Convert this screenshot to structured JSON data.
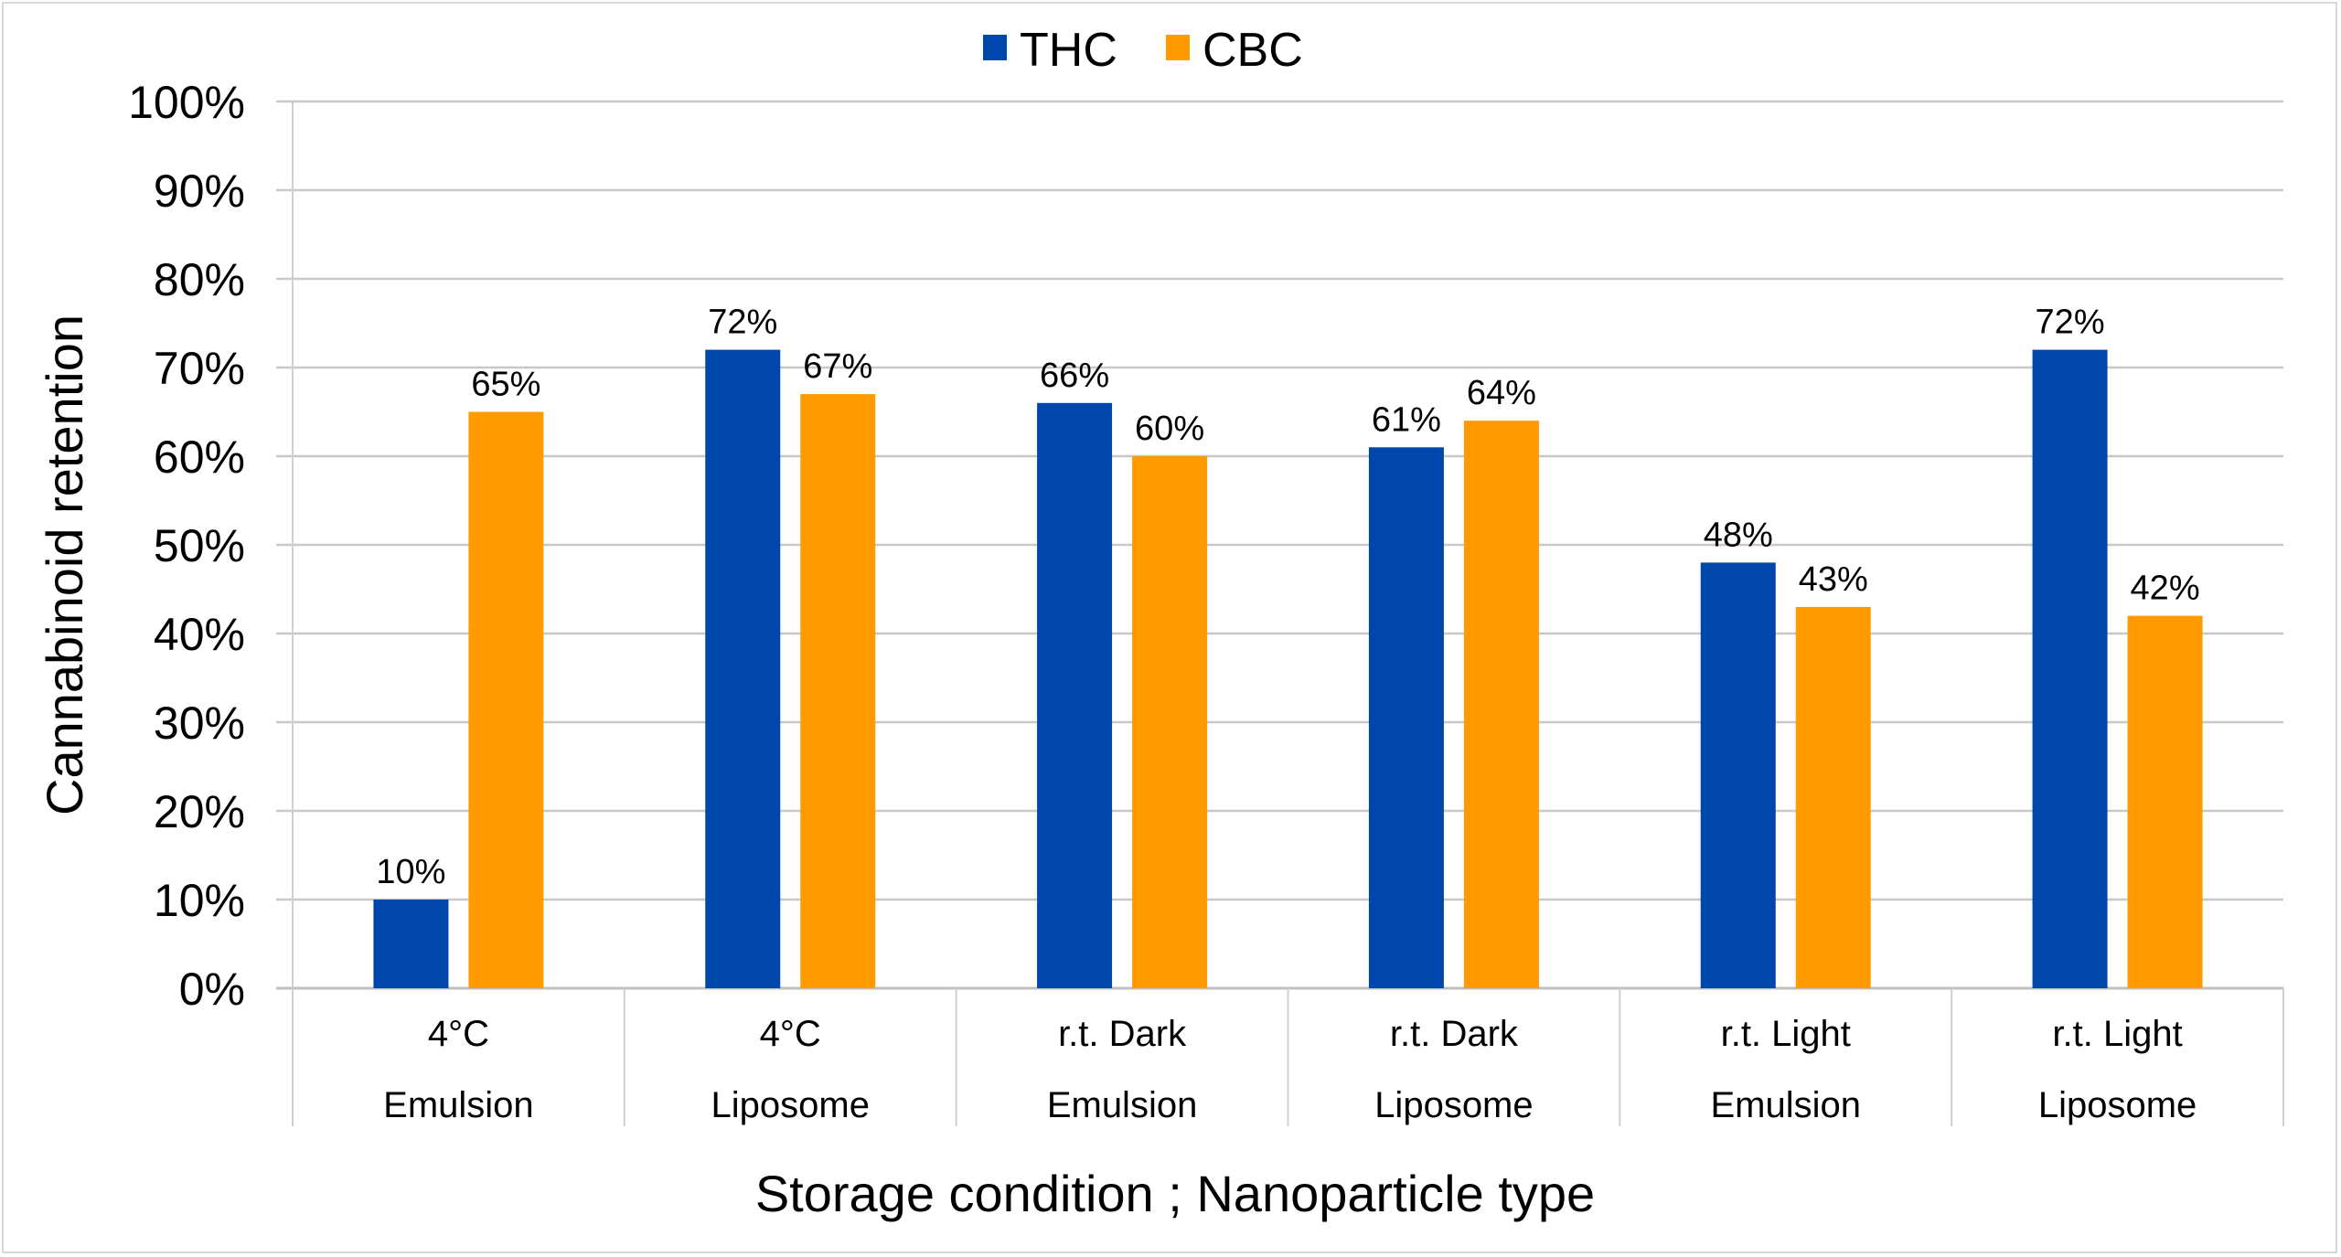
{
  "chart_data": {
    "type": "bar",
    "title": "",
    "xlabel": "Storage condition ; Nanoparticle type",
    "ylabel": "Cannabinoid retention",
    "ylim": [
      0,
      100
    ],
    "yticks": [
      "0%",
      "10%",
      "20%",
      "30%",
      "40%",
      "50%",
      "60%",
      "70%",
      "80%",
      "90%",
      "100%"
    ],
    "grid": true,
    "legend_position": "top-center",
    "categories": [
      {
        "line1": "4°C",
        "line2": "Emulsion"
      },
      {
        "line1": "4°C",
        "line2": "Liposome"
      },
      {
        "line1": "r.t. Dark",
        "line2": "Emulsion"
      },
      {
        "line1": "r.t. Dark",
        "line2": "Liposome"
      },
      {
        "line1": "r.t. Light",
        "line2": "Emulsion"
      },
      {
        "line1": "r.t. Light",
        "line2": "Liposome"
      }
    ],
    "series": [
      {
        "name": "THC",
        "color": "#0047AB",
        "values": [
          10,
          72,
          66,
          61,
          48,
          72
        ],
        "labels": [
          "10%",
          "72%",
          "66%",
          "61%",
          "48%",
          "72%"
        ]
      },
      {
        "name": "CBC",
        "color": "#FF9B00",
        "values": [
          65,
          67,
          60,
          64,
          43,
          42
        ],
        "labels": [
          "65%",
          "67%",
          "60%",
          "64%",
          "43%",
          "42%"
        ]
      }
    ]
  }
}
